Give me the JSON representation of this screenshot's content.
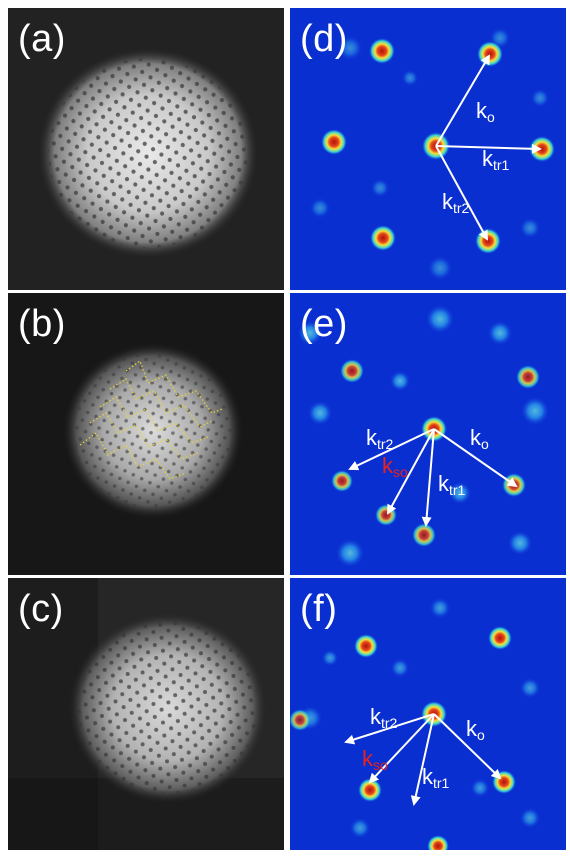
{
  "panels": {
    "a": {
      "label": "(a)"
    },
    "b": {
      "label": "(b)"
    },
    "c": {
      "label": "(c)"
    },
    "d": {
      "label": "(d)",
      "vectors": [
        {
          "main": "k",
          "sub": "o"
        },
        {
          "main": "k",
          "sub": "tr1"
        },
        {
          "main": "k",
          "sub": "tr2"
        }
      ]
    },
    "e": {
      "label": "(e)",
      "vectors": [
        {
          "main": "k",
          "sub": "tr2"
        },
        {
          "main": "k",
          "sub": "so"
        },
        {
          "main": "k",
          "sub": "o"
        },
        {
          "main": "k",
          "sub": "tr1"
        }
      ]
    },
    "f": {
      "label": "(f)",
      "vectors": [
        {
          "main": "k",
          "sub": "tr2"
        },
        {
          "main": "k",
          "sub": "so"
        },
        {
          "main": "k",
          "sub": "o"
        },
        {
          "main": "k",
          "sub": "tr1"
        }
      ]
    }
  },
  "colors": {
    "spot_core": "#c41a10",
    "spot_ring": "#f5e23a",
    "spectrum_bg": "#0a2fd0",
    "arrow": "#ffffff",
    "dotted_line": "#e6d23a",
    "label_red": "#e8221f"
  }
}
